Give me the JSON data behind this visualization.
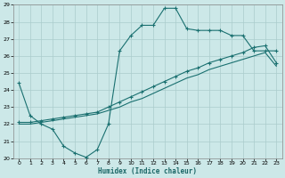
{
  "xlabel": "Humidex (Indice chaleur)",
  "bg_color": "#cce8e8",
  "grid_color": "#aacccc",
  "line_color": "#1a7070",
  "xlim": [
    -0.5,
    23.5
  ],
  "ylim": [
    20,
    29
  ],
  "xticks": [
    0,
    1,
    2,
    3,
    4,
    5,
    6,
    7,
    8,
    9,
    10,
    11,
    12,
    13,
    14,
    15,
    16,
    17,
    18,
    19,
    20,
    21,
    22,
    23
  ],
  "yticks": [
    20,
    21,
    22,
    23,
    24,
    25,
    26,
    27,
    28,
    29
  ],
  "series1_x": [
    0,
    1,
    2,
    3,
    4,
    5,
    6,
    7,
    8,
    9,
    10,
    11,
    12,
    13,
    14,
    15,
    16,
    17,
    18,
    19,
    20,
    21,
    22,
    23
  ],
  "series1_y": [
    24.4,
    22.5,
    22.0,
    21.7,
    20.7,
    20.3,
    20.05,
    20.5,
    22.0,
    26.3,
    27.2,
    27.8,
    27.8,
    28.8,
    28.8,
    27.6,
    27.5,
    27.5,
    27.5,
    27.2,
    27.2,
    26.3,
    26.3,
    26.3
  ],
  "series2_x": [
    0,
    1,
    2,
    3,
    4,
    5,
    6,
    7,
    8,
    9,
    10,
    11,
    12,
    13,
    14,
    15,
    16,
    17,
    18,
    19,
    20,
    21,
    22,
    23
  ],
  "series2_y": [
    22.1,
    22.1,
    22.2,
    22.3,
    22.4,
    22.5,
    22.6,
    22.7,
    23.0,
    23.3,
    23.6,
    23.9,
    24.2,
    24.5,
    24.8,
    25.1,
    25.3,
    25.6,
    25.8,
    26.0,
    26.2,
    26.5,
    26.6,
    25.6
  ],
  "series3_x": [
    0,
    1,
    2,
    3,
    4,
    5,
    6,
    7,
    8,
    9,
    10,
    11,
    12,
    13,
    14,
    15,
    16,
    17,
    18,
    19,
    20,
    21,
    22,
    23
  ],
  "series3_y": [
    22.0,
    22.0,
    22.1,
    22.2,
    22.3,
    22.4,
    22.5,
    22.6,
    22.8,
    23.0,
    23.3,
    23.5,
    23.8,
    24.1,
    24.4,
    24.7,
    24.9,
    25.2,
    25.4,
    25.6,
    25.8,
    26.0,
    26.2,
    25.4
  ]
}
